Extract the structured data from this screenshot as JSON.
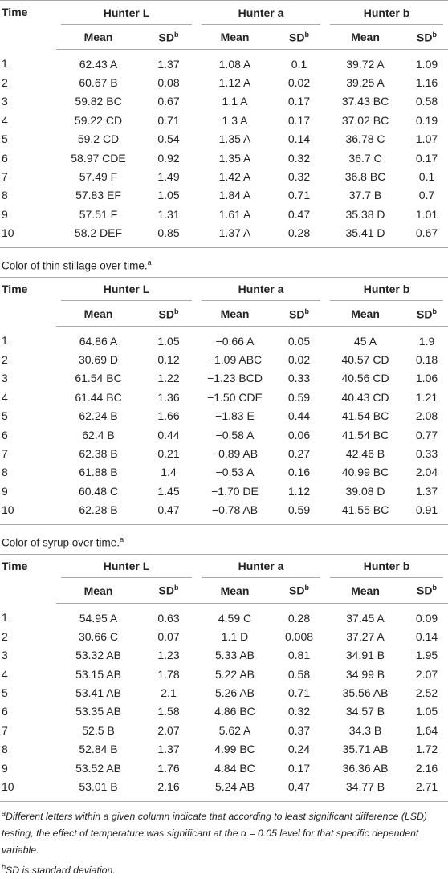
{
  "tables": [
    {
      "header": {
        "time": "Time",
        "groups": [
          "Hunter L",
          "Hunter a",
          "Hunter b"
        ],
        "sub": [
          {
            "text": "Mean"
          },
          {
            "text": "SD",
            "sup": "b"
          },
          {
            "text": "Mean"
          },
          {
            "text": "SD",
            "sup": "b"
          },
          {
            "text": "Mean"
          },
          {
            "text": "SD",
            "sup": "b"
          }
        ]
      },
      "rows": [
        [
          "1",
          "62.43 A",
          "1.37",
          "1.08 A",
          "0.1",
          "39.72 A",
          "1.09"
        ],
        [
          "2",
          "60.67 B",
          "0.08",
          "1.12 A",
          "0.02",
          "39.25 A",
          "1.16"
        ],
        [
          "3",
          "59.82 BC",
          "0.67",
          "1.1 A",
          "0.17",
          "37.43 BC",
          "0.58"
        ],
        [
          "4",
          "59.22 CD",
          "0.71",
          "1.3 A",
          "0.17",
          "37.02 BC",
          "0.19"
        ],
        [
          "5",
          "59.2 CD",
          "0.54",
          "1.35 A",
          "0.14",
          "36.78 C",
          "1.07"
        ],
        [
          "6",
          "58.97 CDE",
          "0.92",
          "1.35 A",
          "0.32",
          "36.7 C",
          "0.17"
        ],
        [
          "7",
          "57.49 F",
          "1.49",
          "1.42 A",
          "0.32",
          "36.8 BC",
          "0.1"
        ],
        [
          "8",
          "57.83 EF",
          "1.05",
          "1.84 A",
          "0.71",
          "37.7 B",
          "0.7"
        ],
        [
          "9",
          "57.51 F",
          "1.31",
          "1.61 A",
          "0.47",
          "35.38 D",
          "1.01"
        ],
        [
          "10",
          "58.2 DEF",
          "0.85",
          "1.37 A",
          "0.28",
          "35.41 D",
          "0.67"
        ]
      ]
    },
    {
      "caption": {
        "text": "Color of thin stillage over time.",
        "sup": "a"
      },
      "header": {
        "time": "Time",
        "groups": [
          "Hunter L",
          "Hunter a",
          "Hunter b"
        ],
        "sub": [
          {
            "text": "Mean"
          },
          {
            "text": "SD",
            "sup": "b"
          },
          {
            "text": "Mean"
          },
          {
            "text": "SD",
            "sup": "b"
          },
          {
            "text": "Mean"
          },
          {
            "text": "SD",
            "sup": "b"
          }
        ]
      },
      "rows": [
        [
          "1",
          "64.86 A",
          "1.05",
          "−0.66 A",
          "0.05",
          "45 A",
          "1.9"
        ],
        [
          "2",
          "30.69 D",
          "0.12",
          "−1.09 ABC",
          "0.02",
          "40.57 CD",
          "0.18"
        ],
        [
          "3",
          "61.54 BC",
          "1.22",
          "−1.23 BCD",
          "0.33",
          "40.56 CD",
          "1.06"
        ],
        [
          "4",
          "61.44 BC",
          "1.36",
          "−1.50 CDE",
          "0.59",
          "40.43 CD",
          "1.21"
        ],
        [
          "5",
          "62.24 B",
          "1.66",
          "−1.83 E",
          "0.44",
          "41.54 BC",
          "2.08"
        ],
        [
          "6",
          "62.4 B",
          "0.44",
          "−0.58 A",
          "0.06",
          "41.54 BC",
          "0.77"
        ],
        [
          "7",
          "62.38 B",
          "0.21",
          "−0.89 AB",
          "0.27",
          "42.46 B",
          "0.33"
        ],
        [
          "8",
          "61.88 B",
          "1.4",
          "−0.53 A",
          "0.16",
          "40.99 BC",
          "2.04"
        ],
        [
          "9",
          "60.48 C",
          "1.45",
          "−1.70 DE",
          "1.12",
          "39.08 D",
          "1.37"
        ],
        [
          "10",
          "62.28 B",
          "0.47",
          "−0.78 AB",
          "0.59",
          "41.55 BC",
          "0.91"
        ]
      ]
    },
    {
      "caption": {
        "text": "Color of syrup over time.",
        "sup": "a"
      },
      "header": {
        "time": "Time",
        "groups": [
          "Hunter L",
          "Hunter a",
          "Hunter b"
        ],
        "sub": [
          {
            "text": "Mean"
          },
          {
            "text": "SD",
            "sup": "b"
          },
          {
            "text": "Mean"
          },
          {
            "text": "SD",
            "sup": "b"
          },
          {
            "text": "Mean"
          },
          {
            "text": "SD",
            "sup": "b"
          }
        ]
      },
      "rows": [
        [
          "1",
          "54.95 A",
          "0.63",
          "4.59 C",
          "0.28",
          "37.45 A",
          "0.09"
        ],
        [
          "2",
          "30.66 C",
          "0.07",
          "1.1 D",
          "0.008",
          "37.27 A",
          "0.14"
        ],
        [
          "3",
          "53.32 AB",
          "1.23",
          "5.33 AB",
          "0.81",
          "34.91 B",
          "1.95"
        ],
        [
          "4",
          "53.15 AB",
          "1.78",
          "5.22 AB",
          "0.58",
          "34.99 B",
          "2.07"
        ],
        [
          "5",
          "53.41 AB",
          "2.1",
          "5.26 AB",
          "0.71",
          "35.56 AB",
          "2.52"
        ],
        [
          "6",
          "53.35 AB",
          "1.58",
          "4.86 BC",
          "0.32",
          "34.57 B",
          "1.05"
        ],
        [
          "7",
          "52.5 B",
          "2.07",
          "5.62 A",
          "0.37",
          "34.3 B",
          "1.64"
        ],
        [
          "8",
          "52.84 B",
          "1.37",
          "4.99 BC",
          "0.24",
          "35.71 AB",
          "1.72"
        ],
        [
          "9",
          "53.52 AB",
          "1.76",
          "4.84 BC",
          "0.17",
          "36.36 AB",
          "2.16"
        ],
        [
          "10",
          "53.01 B",
          "2.16",
          "5.24 AB",
          "0.47",
          "34.77 B",
          "2.71"
        ]
      ]
    }
  ],
  "footnotes": [
    {
      "sup": "a",
      "text": "Different letters within a given column indicate that according to least significant difference (LSD) testing, the effect of temperature was significant at the α = 0.05 level for that specific dependent variable."
    },
    {
      "sup": "b",
      "text": "SD is standard deviation."
    }
  ]
}
